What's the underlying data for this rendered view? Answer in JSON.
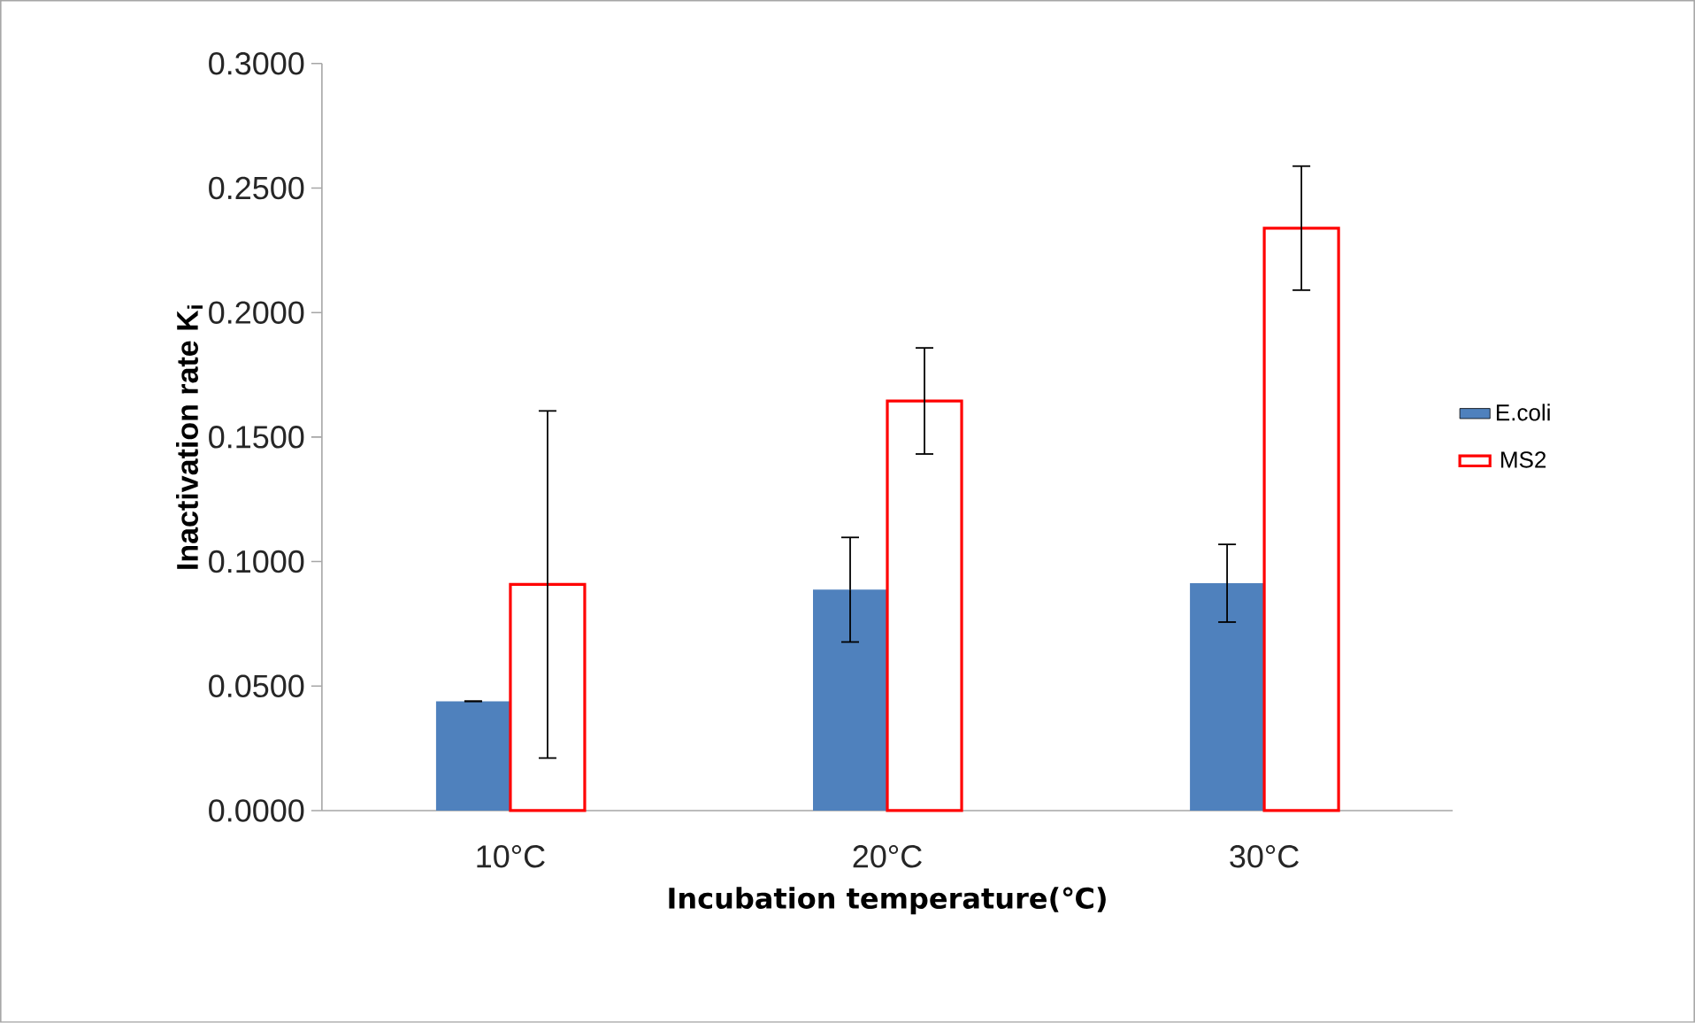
{
  "chart_data": {
    "type": "bar",
    "xlabel": "Incubation temperature(℃)",
    "ylabel": "Inactivation rate K$_{i}$",
    "categories": [
      "10°C",
      "20°C",
      "30°C"
    ],
    "series": [
      {
        "name": "E.coli",
        "color": "#4f81bd",
        "values": [
          0.0439,
          0.0887,
          0.0913
        ],
        "errors": [
          0,
          0.021,
          0.0156
        ]
      },
      {
        "name": "MS2",
        "color": "#ff0000",
        "values": [
          0.0908,
          0.1645,
          0.2339
        ],
        "errors": [
          0.0697,
          0.0213,
          0.0249
        ]
      }
    ],
    "ylim": [
      0,
      0.3
    ],
    "yticks": [
      {
        "value": 0,
        "label": "0.0000"
      },
      {
        "value": 0.05,
        "label": "0.0500"
      },
      {
        "value": 0.1,
        "label": "0.1000"
      },
      {
        "value": 0.15,
        "label": "0.1500"
      },
      {
        "value": 0.2,
        "label": "0.2000"
      },
      {
        "value": 0.25,
        "label": "0.2500"
      },
      {
        "value": 0.3,
        "label": "0.3000"
      }
    ],
    "grid": false,
    "legend": "right"
  }
}
